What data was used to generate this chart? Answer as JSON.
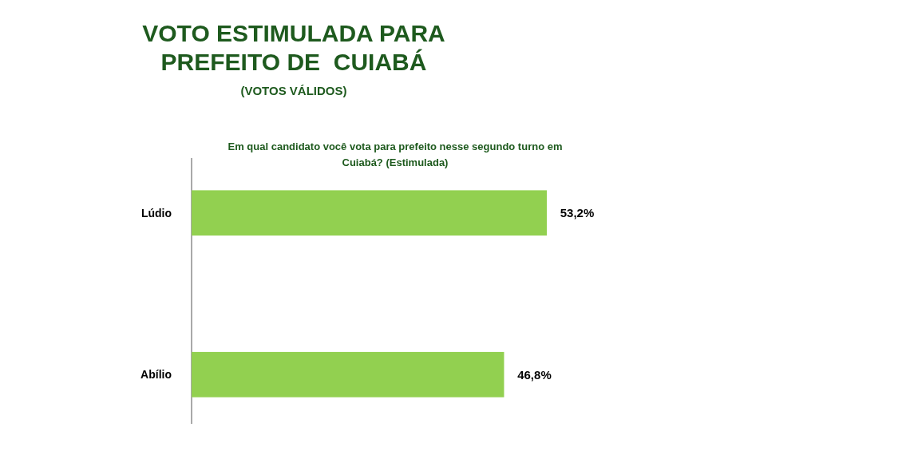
{
  "chart_data": {
    "type": "bar",
    "orientation": "horizontal",
    "title": "VOTO ESTIMULADA PARA\nPREFEITO DE  CUIABÁ",
    "subtitle": "(VOTOS VÁLIDOS)",
    "annotations": [
      "Em qual candidato você vota para prefeito nesse segundo turno em\nCuiabá? (Estimulada)"
    ],
    "categories": [
      "Lúdio",
      "Abílio"
    ],
    "values": [
      53.2,
      46.8
    ],
    "value_labels": [
      "53,2%",
      "46,8%"
    ],
    "color": "#92d050"
  }
}
